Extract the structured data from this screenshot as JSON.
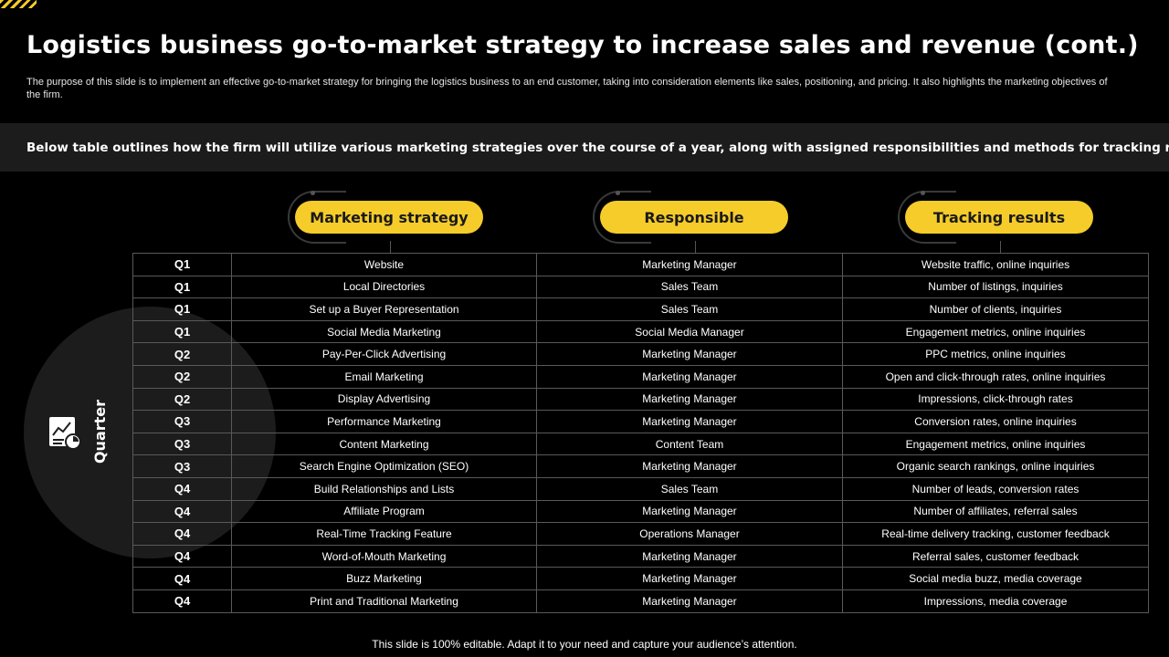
{
  "title": "Logistics business go-to-market strategy to increase sales and revenue (cont.)",
  "description": "The purpose of this slide is to implement an effective go-to-market strategy for bringing the logistics business to an end customer, taking into consideration elements like sales, positioning, and pricing. It also highlights the marketing objectives of the firm.",
  "banner": "Below table outlines how the firm will utilize various marketing strategies over the course of a year, along with assigned responsibilities and methods  for tracking results",
  "side_label": "Quarter",
  "side_icon": "report-chart-icon",
  "headers": [
    "Marketing strategy",
    "Responsible",
    "Tracking results"
  ],
  "rows": [
    {
      "quarter": "Q1",
      "strategy": "Website",
      "responsible": "Marketing Manager",
      "tracking": "Website traffic, online inquiries"
    },
    {
      "quarter": "Q1",
      "strategy": "Local Directories",
      "responsible": "Sales Team",
      "tracking": "Number of listings, inquiries"
    },
    {
      "quarter": "Q1",
      "strategy": "Set up a Buyer Representation",
      "responsible": "Sales Team",
      "tracking": "Number of clients, inquiries"
    },
    {
      "quarter": "Q1",
      "strategy": "Social Media Marketing",
      "responsible": "Social Media Manager",
      "tracking": "Engagement metrics, online inquiries"
    },
    {
      "quarter": "Q2",
      "strategy": "Pay-Per-Click Advertising",
      "responsible": "Marketing Manager",
      "tracking": "PPC metrics, online inquiries"
    },
    {
      "quarter": "Q2",
      "strategy": "Email Marketing",
      "responsible": "Marketing Manager",
      "tracking": "Open and click-through rates, online inquiries"
    },
    {
      "quarter": "Q2",
      "strategy": "Display Advertising",
      "responsible": "Marketing Manager",
      "tracking": "Impressions, click-through rates"
    },
    {
      "quarter": "Q3",
      "strategy": "Performance Marketing",
      "responsible": "Marketing Manager",
      "tracking": "Conversion rates, online inquiries"
    },
    {
      "quarter": "Q3",
      "strategy": "Content Marketing",
      "responsible": "Content Team",
      "tracking": "Engagement metrics, online inquiries"
    },
    {
      "quarter": "Q3",
      "strategy": "Search Engine Optimization (SEO)",
      "responsible": "Marketing Manager",
      "tracking": "Organic search rankings, online inquiries"
    },
    {
      "quarter": "Q4",
      "strategy": "Build Relationships and Lists",
      "responsible": "Sales Team",
      "tracking": "Number of leads, conversion rates"
    },
    {
      "quarter": "Q4",
      "strategy": "Affiliate Program",
      "responsible": "Marketing Manager",
      "tracking": "Number of affiliates, referral sales"
    },
    {
      "quarter": "Q4",
      "strategy": "Real-Time Tracking Feature",
      "responsible": "Operations Manager",
      "tracking": "Real-time delivery tracking, customer feedback"
    },
    {
      "quarter": "Q4",
      "strategy": "Word-of-Mouth Marketing",
      "responsible": "Marketing Manager",
      "tracking": "Referral sales, customer feedback"
    },
    {
      "quarter": "Q4",
      "strategy": "Buzz Marketing",
      "responsible": "Marketing Manager",
      "tracking": "Social media buzz,  media coverage"
    },
    {
      "quarter": "Q4",
      "strategy": "Print and Traditional Marketing",
      "responsible": "Marketing Manager",
      "tracking": "Impressions, media coverage"
    }
  ],
  "footer": "This slide is 100% editable. Adapt it to your need and capture your audience’s attention.",
  "colors": {
    "accent": "#f6cc2a",
    "background": "#000000",
    "panel": "#1c1c1c",
    "border": "#595959"
  }
}
